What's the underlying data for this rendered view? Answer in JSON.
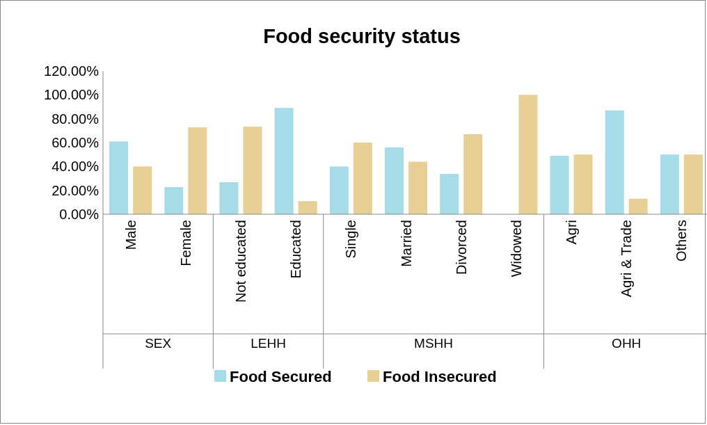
{
  "chart_data": {
    "type": "bar",
    "title": "Food security status",
    "categories": [
      "Male",
      "Female",
      "Not educated",
      "Educated",
      "Single",
      "Married",
      "Divorced",
      "Widowed",
      "Agri",
      "Agri & Trade",
      "Others"
    ],
    "series": [
      {
        "name": "Food Secured",
        "color": "#a6dce8",
        "values": [
          61,
          22.7,
          26.8,
          89,
          40,
          56,
          33.8,
          0,
          49,
          87,
          50
        ]
      },
      {
        "name": "Food Insecured",
        "color": "#e8cf96",
        "values": [
          40,
          72.8,
          73.4,
          11,
          60,
          44,
          67,
          100,
          50,
          13,
          50
        ]
      }
    ],
    "ylim": [
      0,
      120
    ],
    "yticks": [
      {
        "value": 0,
        "label": "0.00%"
      },
      {
        "value": 20,
        "label": "20.00%"
      },
      {
        "value": 40,
        "label": "40.00%"
      },
      {
        "value": 60,
        "label": "60.00%"
      },
      {
        "value": 80,
        "label": "80.00%"
      },
      {
        "value": 100,
        "label": "100.00%"
      },
      {
        "value": 120,
        "label": "120.00%"
      }
    ],
    "annotations": [
      "SEX",
      "LEHH",
      "MSHH",
      "OHH"
    ],
    "grid": false,
    "legend": "bottom"
  }
}
